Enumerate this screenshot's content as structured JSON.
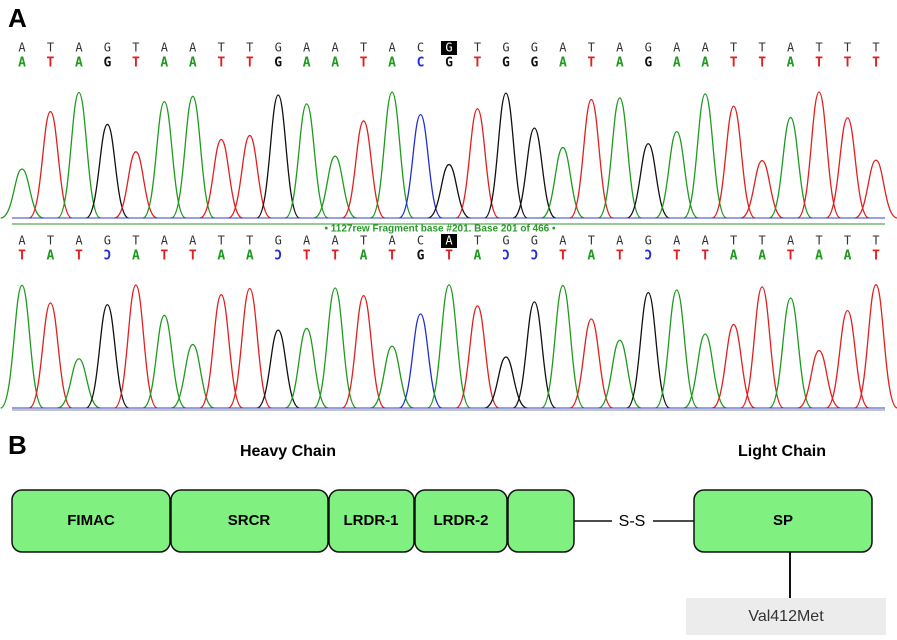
{
  "panel_a": {
    "label": "A",
    "traces": [
      {
        "reference": [
          "A",
          "T",
          "A",
          "G",
          "T",
          "A",
          "A",
          "T",
          "T",
          "G",
          "A",
          "A",
          "T",
          "A",
          "C",
          "G",
          "T",
          "G",
          "G",
          "A",
          "T",
          "A",
          "G",
          "A",
          "A",
          "T",
          "T",
          "A",
          "T",
          "T",
          "T"
        ],
        "called": [
          "A",
          "T",
          "A",
          "G",
          "T",
          "A",
          "A",
          "T",
          "T",
          "G",
          "A",
          "A",
          "T",
          "A",
          "C",
          "G",
          "T",
          "G",
          "G",
          "A",
          "T",
          "A",
          "G",
          "A",
          "A",
          "T",
          "T",
          "A",
          "T",
          "T",
          "T"
        ]
      },
      {
        "reference": [
          "A",
          "T",
          "A",
          "G",
          "T",
          "A",
          "A",
          "T",
          "T",
          "G",
          "A",
          "A",
          "T",
          "A",
          "C",
          "A",
          "T",
          "G",
          "G",
          "A",
          "T",
          "A",
          "G",
          "A",
          "A",
          "T",
          "T",
          "A",
          "T",
          "T",
          "T"
        ],
        "called": [
          "T",
          "A",
          "T",
          "Ɔ",
          "A",
          "T",
          "T",
          "A",
          "A",
          "Ɔ",
          "T",
          "T",
          "A",
          "T",
          "G",
          "T",
          "A",
          "Ɔ",
          "Ɔ",
          "T",
          "A",
          "T",
          "Ɔ",
          "T",
          "T",
          "A",
          "A",
          "T",
          "A",
          "A",
          "T"
        ]
      }
    ],
    "banner": "• 1127rew Fragment base #201. Base 201 of 466 •"
  },
  "panel_b": {
    "label": "B",
    "heavy_chain": "Heavy Chain",
    "light_chain": "Light Chain",
    "domains": [
      "FIMAC",
      "SRCR",
      "LRDR-1",
      "LRDR-2"
    ],
    "bond": "S-S",
    "light_domain": "SP",
    "mutation": "Val412Met"
  }
}
